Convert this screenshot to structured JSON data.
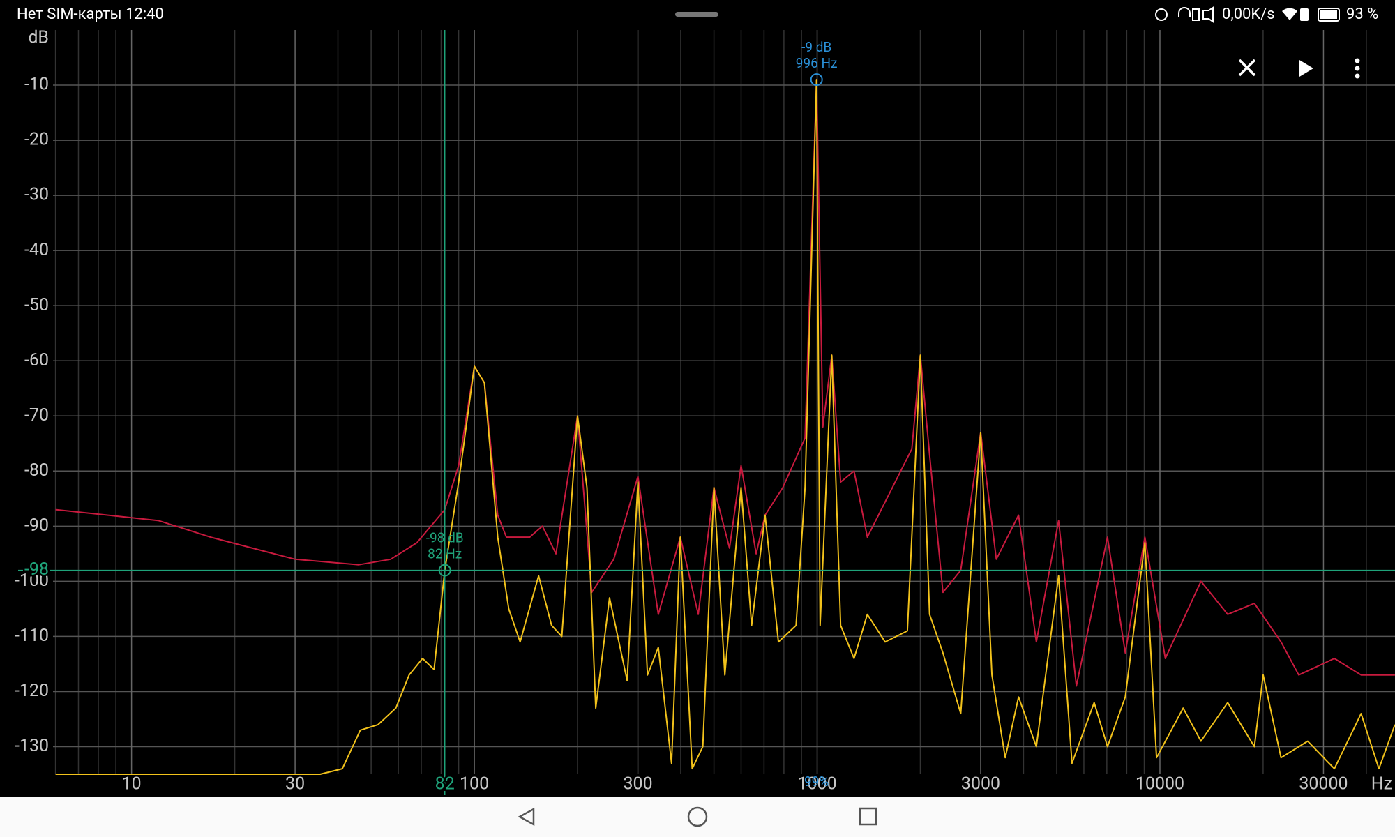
{
  "status_bar": {
    "carrier_time": "Нет SIM-карты 12:40",
    "speed": "0,00K/s",
    "battery": "93 %"
  },
  "chart_data": {
    "type": "line",
    "y_label": "dB",
    "x_unit": "Hz",
    "xlog": true,
    "grid": true,
    "xlim": [
      5.9,
      48500
    ],
    "ylim": [
      -135,
      0
    ],
    "xticks": [
      10,
      30,
      100,
      300,
      1000,
      3000,
      10000,
      30000
    ],
    "xgrid": [
      6,
      7,
      8,
      9,
      20,
      40,
      50,
      60,
      70,
      80,
      90,
      200,
      400,
      500,
      600,
      700,
      800,
      900,
      2000,
      4000,
      5000,
      6000,
      7000,
      8000,
      9000,
      20000,
      40000
    ],
    "yticks": [
      -10,
      -20,
      -30,
      -40,
      -50,
      -60,
      -70,
      -80,
      -90,
      -100,
      -110,
      -120,
      -130
    ],
    "series": [
      {
        "color": "#c81a3e",
        "x": [
          6,
          12,
          17,
          30,
          46,
          57,
          68,
          82,
          90,
          100,
          107,
          117,
          124,
          145,
          158,
          173,
          200,
          220,
          255,
          300,
          344,
          399,
          450,
          500,
          555,
          600,
          664,
          705,
          794,
          922,
          996,
          1039,
          1103,
          1171,
          1281,
          1401,
          1627,
          1889,
          2000,
          2128,
          2328,
          2624,
          3000,
          3332,
          3869,
          4360,
          5063,
          5706,
          7031,
          7925,
          9036,
          10370,
          13170,
          15760,
          18860,
          22560,
          25410,
          32280,
          38620,
          48480
        ],
        "values": [
          -87,
          -89,
          -92,
          -96,
          -97,
          -96,
          -93,
          -87,
          -79,
          -61,
          -64,
          -88,
          -92,
          -92,
          -90,
          -95,
          -70,
          -102,
          -96,
          -81,
          -106,
          -92,
          -106,
          -83,
          -94,
          -79,
          -95,
          -88,
          -83,
          -74,
          -9,
          -72,
          -59,
          -82,
          -80,
          -92,
          -84,
          -76,
          -59,
          -77,
          -102,
          -98,
          -73,
          -96,
          -88,
          -111,
          -89,
          -119,
          -92,
          -113,
          -92,
          -114,
          -100,
          -106,
          -104,
          -111,
          -117,
          -114,
          -117,
          -117
        ]
      },
      {
        "color": "#f2c21b",
        "x": [
          6,
          35.5,
          41.2,
          46.5,
          52.4,
          59,
          64.5,
          70.6,
          76.3,
          82,
          90,
          100,
          107,
          117,
          126,
          136,
          154,
          168,
          180,
          200,
          213,
          226,
          248,
          279,
          300,
          320,
          344,
          376,
          399,
          432,
          464,
          500,
          538,
          600,
          644,
          705,
          771,
          868,
          922,
          996,
          1020,
          1103,
          1171,
          1281,
          1401,
          1579,
          1833,
          2000,
          2128,
          2328,
          2624,
          3000,
          3235,
          3538,
          3869,
          4360,
          5063,
          5538,
          6430,
          7031,
          7925,
          9036,
          9772,
          11690,
          13170,
          15760,
          18860,
          20010,
          22560,
          26980,
          32280,
          38620,
          43530,
          48480
        ],
        "values": [
          -135,
          -135,
          -134,
          -127,
          -126,
          -123,
          -117,
          -114,
          -116,
          -98,
          -82,
          -61,
          -64,
          -92,
          -105,
          -111,
          -99,
          -108,
          -110,
          -70,
          -83,
          -123,
          -103,
          -118,
          -82,
          -117,
          -112,
          -133,
          -92,
          -134,
          -130,
          -83,
          -117,
          -83,
          -108,
          -88,
          -111,
          -108,
          -83,
          -9,
          -108,
          -59,
          -108,
          -114,
          -106,
          -111,
          -109,
          -59,
          -106,
          -113,
          -124,
          -73,
          -117,
          -132,
          -121,
          -130,
          -99,
          -133,
          -122,
          -130,
          -121,
          -93,
          -132,
          -123,
          -129,
          -122,
          -130,
          -117,
          -132,
          -129,
          -134,
          -124,
          -134,
          -126
        ]
      }
    ],
    "cursors": [
      {
        "x": 996,
        "y": -9,
        "x_label": "996 Hz",
        "y_label": "-9 dB",
        "color": "#2a8fd6"
      },
      {
        "x": 82,
        "y": -98,
        "x_label": "82 Hz",
        "y_label": "-98 dB",
        "color": "#1fa37a"
      }
    ],
    "overlay_label": "99%"
  }
}
